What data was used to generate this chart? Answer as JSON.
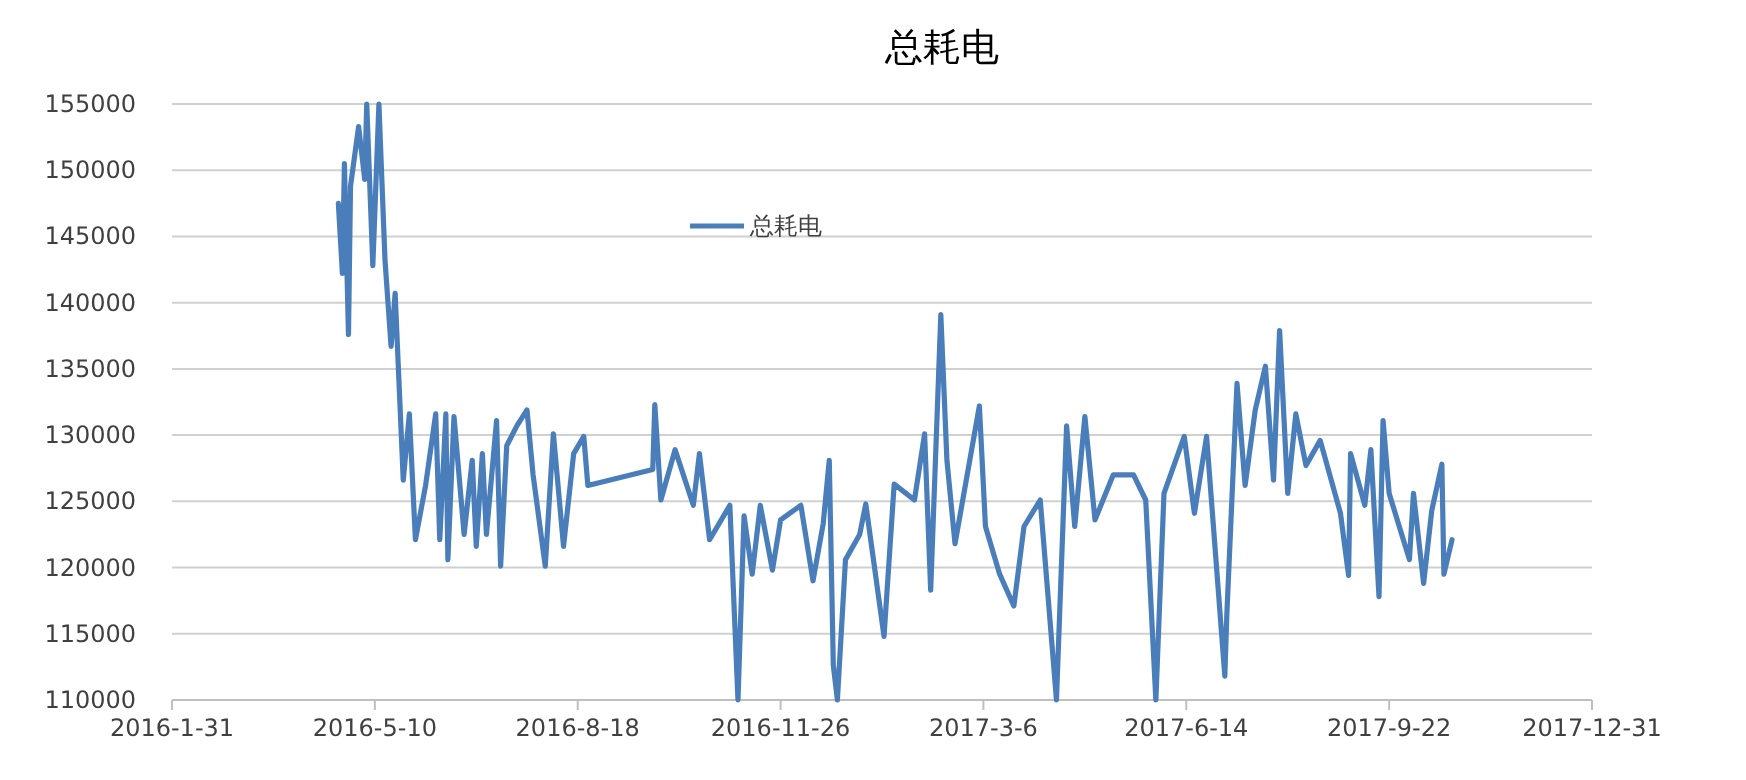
{
  "chart_data": {
    "type": "line",
    "title": "总耗电",
    "x": [
      "2016-04-22",
      "2016-04-24",
      "2016-04-25",
      "2016-04-27",
      "2016-04-28",
      "2016-05-02",
      "2016-05-05",
      "2016-05-06",
      "2016-05-09",
      "2016-05-12",
      "2016-05-15",
      "2016-05-18",
      "2016-05-20",
      "2016-05-24",
      "2016-05-27",
      "2016-05-30",
      "2016-06-04",
      "2016-06-09",
      "2016-06-11",
      "2016-06-14",
      "2016-06-15",
      "2016-06-18",
      "2016-06-23",
      "2016-06-27",
      "2016-06-29",
      "2016-07-02",
      "2016-07-04",
      "2016-07-09",
      "2016-07-11",
      "2016-07-14",
      "2016-07-19",
      "2016-07-24",
      "2016-07-27",
      "2016-08-02",
      "2016-08-06",
      "2016-08-11",
      "2016-08-16",
      "2016-08-21",
      "2016-08-23",
      "2016-09-24",
      "2016-09-25",
      "2016-09-28",
      "2016-10-05",
      "2016-10-14",
      "2016-10-17",
      "2016-10-22",
      "2016-11-01",
      "2016-11-05",
      "2016-11-08",
      "2016-11-12",
      "2016-11-16",
      "2016-11-22",
      "2016-11-26",
      "2016-12-06",
      "2016-12-12",
      "2016-12-17",
      "2016-12-20",
      "2016-12-22",
      "2016-12-24",
      "2016-12-28",
      "2017-01-04",
      "2017-01-07",
      "2017-01-16",
      "2017-01-21",
      "2017-01-31",
      "2017-02-05",
      "2017-02-08",
      "2017-02-13",
      "2017-02-16",
      "2017-02-20",
      "2017-03-04",
      "2017-03-07",
      "2017-03-14",
      "2017-03-21",
      "2017-03-26",
      "2017-04-03",
      "2017-04-11",
      "2017-04-16",
      "2017-04-20",
      "2017-04-25",
      "2017-04-30",
      "2017-05-09",
      "2017-05-19",
      "2017-05-25",
      "2017-05-30",
      "2017-06-03",
      "2017-06-13",
      "2017-06-18",
      "2017-06-24",
      "2017-07-03",
      "2017-07-04",
      "2017-07-09",
      "2017-07-13",
      "2017-07-18",
      "2017-07-23",
      "2017-07-27",
      "2017-07-30",
      "2017-08-03",
      "2017-08-07",
      "2017-08-12",
      "2017-08-19",
      "2017-08-29",
      "2017-09-02",
      "2017-09-03",
      "2017-09-10",
      "2017-09-13",
      "2017-09-17",
      "2017-09-19",
      "2017-09-22",
      "2017-09-27",
      "2017-10-02",
      "2017-10-04",
      "2017-10-09",
      "2017-10-13",
      "2017-10-18",
      "2017-10-19",
      "2017-10-23"
    ],
    "series": [
      {
        "name": "总耗电",
        "color": "#4a7ebb",
        "values": [
          147500,
          142200,
          150500,
          137600,
          148800,
          153300,
          149300,
          155000,
          142800,
          155000,
          143200,
          136700,
          140700,
          126600,
          131600,
          122100,
          126200,
          131600,
          122100,
          131600,
          120600,
          131400,
          122500,
          128100,
          121600,
          128600,
          122500,
          131100,
          120100,
          129200,
          130700,
          131900,
          127000,
          120100,
          130100,
          121600,
          128600,
          129900,
          126200,
          127400,
          132300,
          125100,
          128900,
          124700,
          128600,
          122100,
          124700,
          110000,
          123900,
          119500,
          124700,
          119800,
          123600,
          124700,
          119000,
          123300,
          128100,
          112600,
          110000,
          120600,
          122500,
          124800,
          114800,
          126300,
          125100,
          130100,
          118300,
          139100,
          128100,
          121800,
          132200,
          123100,
          119500,
          117100,
          123100,
          125100,
          110000,
          130700,
          123100,
          131400,
          123600,
          127000,
          127000,
          125100,
          110000,
          125600,
          129900,
          124100,
          129900,
          111800,
          116500,
          133900,
          126200,
          131900,
          135200,
          126600,
          137900,
          125600,
          131600,
          127700,
          129600,
          124100,
          119400,
          128600,
          124700,
          128900,
          117800,
          131100,
          125600,
          123100,
          120600,
          125600,
          118800,
          124300,
          127800,
          119500,
          122100
        ]
      }
    ],
    "ylim": [
      110000,
      155000
    ],
    "yticks": [
      110000,
      115000,
      120000,
      125000,
      130000,
      135000,
      140000,
      145000,
      150000,
      155000
    ],
    "xlim": [
      "2016-01-31",
      "2017-12-31"
    ],
    "xticks": [
      {
        "value": "2016-01-31",
        "label": "2016-1-31"
      },
      {
        "value": "2016-05-10",
        "label": "2016-5-10"
      },
      {
        "value": "2016-08-18",
        "label": "2016-8-18"
      },
      {
        "value": "2016-11-26",
        "label": "2016-11-26"
      },
      {
        "value": "2017-03-06",
        "label": "2017-3-6"
      },
      {
        "value": "2017-06-14",
        "label": "2017-6-14"
      },
      {
        "value": "2017-09-22",
        "label": "2017-9-22"
      },
      {
        "value": "2017-12-31",
        "label": "2017-12-31"
      }
    ],
    "grid": "y",
    "legend": "top",
    "marker": "none",
    "line_style": "solid"
  }
}
